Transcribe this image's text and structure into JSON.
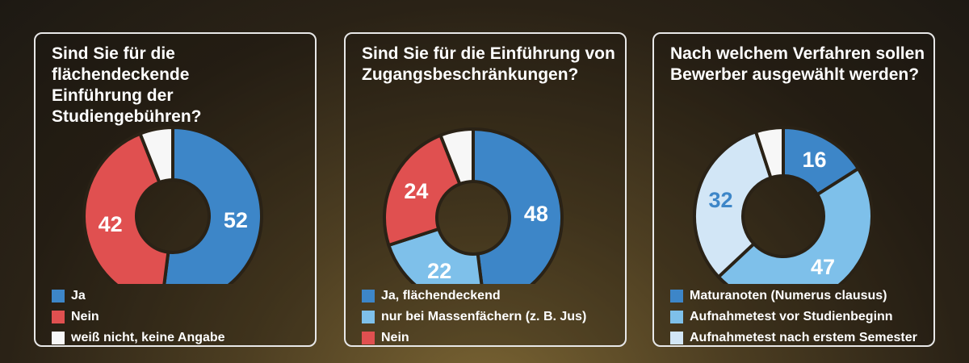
{
  "colors": {
    "blue": "#3d86c8",
    "red": "#e05050",
    "white": "#f7f7f7",
    "lightblue": "#7ec0ea",
    "paleblue": "#d2e6f6"
  },
  "chart_data": [
    {
      "type": "pie",
      "title": "Sind Sie für die flächendeckende Einführung der Studiengebühren?",
      "series": [
        {
          "name": "Ja",
          "value": 52,
          "label": "52",
          "color": "#3d86c8",
          "label_color": "#ffffff"
        },
        {
          "name": "Nein",
          "value": 42,
          "label": "42",
          "color": "#e05050",
          "label_color": "#ffffff"
        },
        {
          "name": "weiß nicht, keine Angabe",
          "value": 6,
          "label": "",
          "color": "#f7f7f7",
          "label_color": "#ffffff"
        }
      ]
    },
    {
      "type": "pie",
      "title": "Sind Sie für die Einführung von Zugangsbeschränkungen?",
      "series": [
        {
          "name": "Ja, flächendeckend",
          "value": 48,
          "label": "48",
          "color": "#3d86c8",
          "label_color": "#ffffff"
        },
        {
          "name": "nur bei Massenfächern (z. B. Jus)",
          "value": 22,
          "label": "22",
          "color": "#7ec0ea",
          "label_color": "#ffffff"
        },
        {
          "name": "Nein",
          "value": 24,
          "label": "24",
          "color": "#e05050",
          "label_color": "#ffffff"
        },
        {
          "name": "",
          "value": 6,
          "label": "",
          "color": "#f7f7f7",
          "label_color": "#ffffff"
        }
      ]
    },
    {
      "type": "pie",
      "title": "Nach welchem Verfahren sollen Bewerber ausgewählt werden?",
      "series": [
        {
          "name": "Maturanoten (Numerus clausus)",
          "value": 16,
          "label": "16",
          "color": "#3d86c8",
          "label_color": "#ffffff"
        },
        {
          "name": "Aufnahmetest vor Studienbeginn",
          "value": 47,
          "label": "47",
          "color": "#7ec0ea",
          "label_color": "#ffffff"
        },
        {
          "name": "Aufnahmetest nach erstem Semester",
          "value": 32,
          "label": "32",
          "color": "#d2e6f6",
          "label_color": "#3d86c8"
        },
        {
          "name": "",
          "value": 5,
          "label": "",
          "color": "#f7f7f7",
          "label_color": "#ffffff"
        }
      ]
    }
  ],
  "legends": [
    [
      {
        "label": "Ja",
        "color": "#3d86c8"
      },
      {
        "label": "Nein",
        "color": "#e05050"
      },
      {
        "label": "weiß nicht, keine Angabe",
        "color": "#f7f7f7"
      }
    ],
    [
      {
        "label": "Ja, flächendeckend",
        "color": "#3d86c8"
      },
      {
        "label": "nur bei Massenfächern (z. B. Jus)",
        "color": "#7ec0ea"
      },
      {
        "label": "Nein",
        "color": "#e05050"
      }
    ],
    [
      {
        "label": "Maturanoten (Numerus clausus)",
        "color": "#3d86c8"
      },
      {
        "label": "Aufnahmetest vor Studienbeginn",
        "color": "#7ec0ea"
      },
      {
        "label": "Aufnahmetest nach erstem Semester",
        "color": "#d2e6f6"
      }
    ]
  ],
  "panels": [
    {
      "title": "Sind Sie für die flächendeckende\nEinführung der Studiengebühren?"
    },
    {
      "title": "Sind Sie für die Einführung von\nZugangsbeschränkungen?"
    },
    {
      "title": "Nach welchem Verfahren sollen\nBewerber ausgewählt werden?"
    }
  ]
}
